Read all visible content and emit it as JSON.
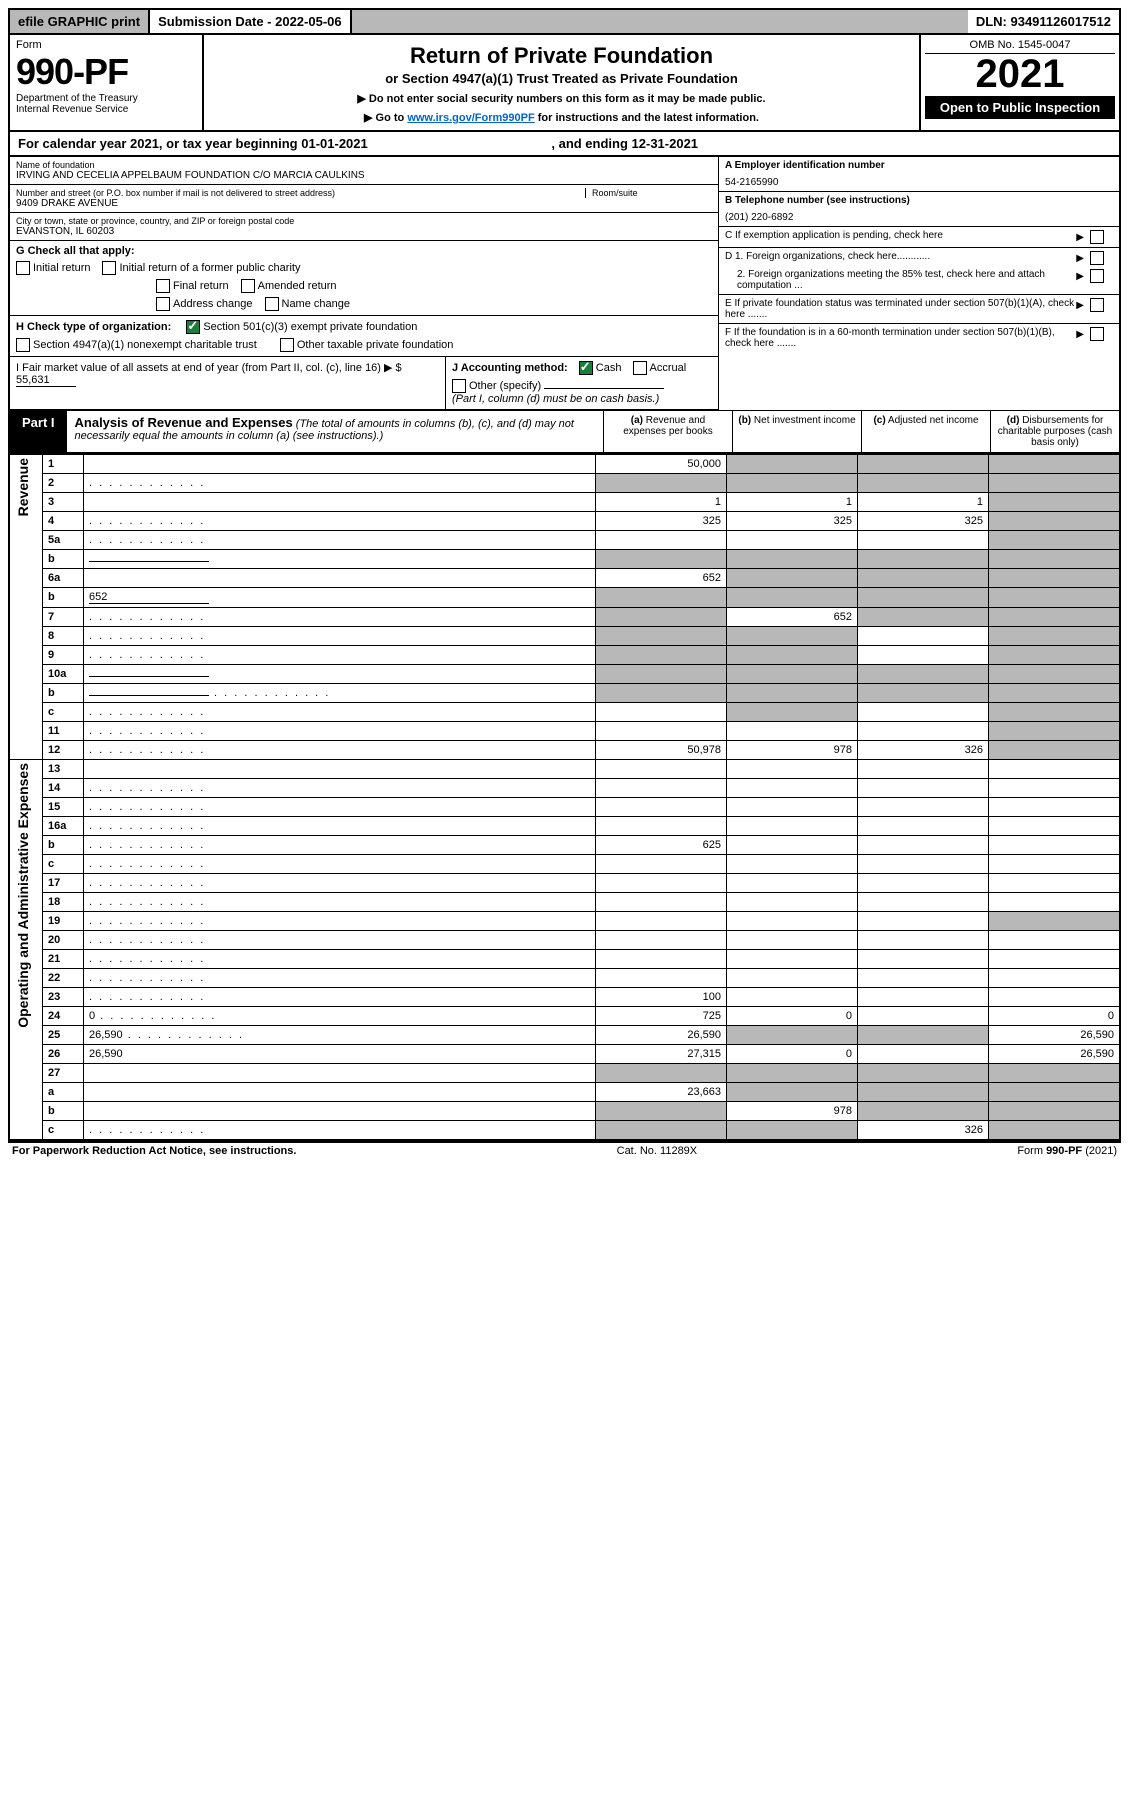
{
  "topbar": {
    "efile": "efile GRAPHIC print",
    "subdate_label": "Submission Date - ",
    "subdate": "2022-05-06",
    "dln_label": "DLN: ",
    "dln": "93491126017512"
  },
  "header": {
    "form_label": "Form",
    "form_no": "990-PF",
    "dept1": "Department of the Treasury",
    "dept2": "Internal Revenue Service",
    "title": "Return of Private Foundation",
    "subtitle": "or Section 4947(a)(1) Trust Treated as Private Foundation",
    "note1": "▶ Do not enter social security numbers on this form as it may be made public.",
    "note2_pre": "▶ Go to ",
    "note2_link": "www.irs.gov/Form990PF",
    "note2_post": " for instructions and the latest information.",
    "omb": "OMB No. 1545-0047",
    "year": "2021",
    "open": "Open to Public Inspection"
  },
  "calyear": {
    "text_pre": "For calendar year 2021, or tax year beginning ",
    "begin": "01-01-2021",
    "text_mid": " , and ending ",
    "end": "12-31-2021"
  },
  "ident": {
    "name_label": "Name of foundation",
    "name": "IRVING AND CECELIA APPELBAUM FOUNDATION C/O MARCIA CAULKINS",
    "addr_label": "Number and street (or P.O. box number if mail is not delivered to street address)",
    "addr": "9409 DRAKE AVENUE",
    "room_label": "Room/suite",
    "city_label": "City or town, state or province, country, and ZIP or foreign postal code",
    "city": "EVANSTON, IL  60203",
    "a_label": "A Employer identification number",
    "a_val": "54-2165990",
    "b_label": "B Telephone number (see instructions)",
    "b_val": "(201) 220-6892",
    "c_label": "C If exemption application is pending, check here",
    "d1": "D 1. Foreign organizations, check here............",
    "d2": "2. Foreign organizations meeting the 85% test, check here and attach computation ...",
    "e": "E  If private foundation status was terminated under section 507(b)(1)(A), check here .......",
    "f": "F  If the foundation is in a 60-month termination under section 507(b)(1)(B), check here .......",
    "g_label": "G Check all that apply:",
    "g_opts": [
      "Initial return",
      "Initial return of a former public charity",
      "Final return",
      "Amended return",
      "Address change",
      "Name change"
    ],
    "h_label": "H Check type of organization:",
    "h_opt1": "Section 501(c)(3) exempt private foundation",
    "h_opt2": "Section 4947(a)(1) nonexempt charitable trust",
    "h_opt3": "Other taxable private foundation",
    "i_label": "I Fair market value of all assets at end of year (from Part II, col. (c), line 16)",
    "i_val": "55,631",
    "j_label": "J Accounting method:",
    "j_cash": "Cash",
    "j_accrual": "Accrual",
    "j_other": "Other (specify)",
    "j_note": "(Part I, column (d) must be on cash basis.)"
  },
  "part1": {
    "label": "Part I",
    "title": "Analysis of Revenue and Expenses",
    "title_sub": " (The total of amounts in columns (b), (c), and (d) may not necessarily equal the amounts in column (a) (see instructions).)",
    "col_a": "(a) Revenue and expenses per books",
    "col_b": "(b) Net investment income",
    "col_c": "(c) Adjusted net income",
    "col_d": "(d) Disbursements for charitable purposes (cash basis only)"
  },
  "vlabels": {
    "revenue": "Revenue",
    "opadmin": "Operating and Administrative Expenses"
  },
  "rows": [
    {
      "n": "1",
      "d": "",
      "a": "50,000",
      "b": "",
      "c": "",
      "shade": [
        "b",
        "c",
        "d"
      ]
    },
    {
      "n": "2",
      "d": "",
      "a": "",
      "b": "",
      "c": "",
      "shade": [
        "a",
        "b",
        "c",
        "d"
      ],
      "dots": true
    },
    {
      "n": "3",
      "d": "",
      "a": "1",
      "b": "1",
      "c": "1",
      "shade": [
        "d"
      ]
    },
    {
      "n": "4",
      "d": "",
      "a": "325",
      "b": "325",
      "c": "325",
      "shade": [
        "d"
      ],
      "dots": true
    },
    {
      "n": "5a",
      "d": "",
      "a": "",
      "b": "",
      "c": "",
      "shade": [
        "d"
      ],
      "dots": true
    },
    {
      "n": "b",
      "d": "",
      "a": "",
      "b": "",
      "c": "",
      "shade": [
        "a",
        "b",
        "c",
        "d"
      ],
      "subline": true
    },
    {
      "n": "6a",
      "d": "",
      "a": "652",
      "b": "",
      "c": "",
      "shade": [
        "b",
        "c",
        "d"
      ]
    },
    {
      "n": "b",
      "d": "",
      "a": "",
      "b": "",
      "c": "",
      "shade": [
        "a",
        "b",
        "c",
        "d"
      ],
      "subline": true,
      "subval": "652"
    },
    {
      "n": "7",
      "d": "",
      "a": "",
      "b": "652",
      "c": "",
      "shade": [
        "a",
        "c",
        "d"
      ],
      "dots": true
    },
    {
      "n": "8",
      "d": "",
      "a": "",
      "b": "",
      "c": "",
      "shade": [
        "a",
        "b",
        "d"
      ],
      "dots": true
    },
    {
      "n": "9",
      "d": "",
      "a": "",
      "b": "",
      "c": "",
      "shade": [
        "a",
        "b",
        "d"
      ],
      "dots": true
    },
    {
      "n": "10a",
      "d": "",
      "a": "",
      "b": "",
      "c": "",
      "shade": [
        "a",
        "b",
        "c",
        "d"
      ],
      "subline": true
    },
    {
      "n": "b",
      "d": "",
      "a": "",
      "b": "",
      "c": "",
      "shade": [
        "a",
        "b",
        "c",
        "d"
      ],
      "subline": true,
      "dots": true
    },
    {
      "n": "c",
      "d": "",
      "a": "",
      "b": "",
      "c": "",
      "shade": [
        "b",
        "d"
      ],
      "dots": true
    },
    {
      "n": "11",
      "d": "",
      "a": "",
      "b": "",
      "c": "",
      "shade": [
        "d"
      ],
      "dots": true
    },
    {
      "n": "12",
      "d": "",
      "a": "50,978",
      "b": "978",
      "c": "326",
      "shade": [
        "d"
      ],
      "dots": true
    },
    {
      "n": "13",
      "d": "",
      "a": "",
      "b": "",
      "c": ""
    },
    {
      "n": "14",
      "d": "",
      "a": "",
      "b": "",
      "c": "",
      "dots": true
    },
    {
      "n": "15",
      "d": "",
      "a": "",
      "b": "",
      "c": "",
      "dots": true
    },
    {
      "n": "16a",
      "d": "",
      "a": "",
      "b": "",
      "c": "",
      "dots": true
    },
    {
      "n": "b",
      "d": "",
      "a": "625",
      "b": "",
      "c": "",
      "dots": true
    },
    {
      "n": "c",
      "d": "",
      "a": "",
      "b": "",
      "c": "",
      "dots": true
    },
    {
      "n": "17",
      "d": "",
      "a": "",
      "b": "",
      "c": "",
      "dots": true
    },
    {
      "n": "18",
      "d": "",
      "a": "",
      "b": "",
      "c": "",
      "dots": true
    },
    {
      "n": "19",
      "d": "",
      "a": "",
      "b": "",
      "c": "",
      "shade": [
        "d"
      ],
      "dots": true
    },
    {
      "n": "20",
      "d": "",
      "a": "",
      "b": "",
      "c": "",
      "dots": true
    },
    {
      "n": "21",
      "d": "",
      "a": "",
      "b": "",
      "c": "",
      "dots": true
    },
    {
      "n": "22",
      "d": "",
      "a": "",
      "b": "",
      "c": "",
      "dots": true
    },
    {
      "n": "23",
      "d": "",
      "a": "100",
      "b": "",
      "c": "",
      "dots": true
    },
    {
      "n": "24",
      "d": "0",
      "a": "725",
      "b": "0",
      "c": "",
      "dots": true
    },
    {
      "n": "25",
      "d": "26,590",
      "a": "26,590",
      "b": "",
      "c": "",
      "shade": [
        "b",
        "c"
      ],
      "dots": true
    },
    {
      "n": "26",
      "d": "26,590",
      "a": "27,315",
      "b": "0",
      "c": ""
    },
    {
      "n": "27",
      "d": "",
      "a": "",
      "b": "",
      "c": "",
      "shade": [
        "a",
        "b",
        "c",
        "d"
      ]
    },
    {
      "n": "a",
      "d": "",
      "a": "23,663",
      "b": "",
      "c": "",
      "shade": [
        "b",
        "c",
        "d"
      ]
    },
    {
      "n": "b",
      "d": "",
      "a": "",
      "b": "978",
      "c": "",
      "shade": [
        "a",
        "c",
        "d"
      ]
    },
    {
      "n": "c",
      "d": "",
      "a": "",
      "b": "",
      "c": "326",
      "shade": [
        "a",
        "b",
        "d"
      ],
      "dots": true
    }
  ],
  "footer": {
    "left": "For Paperwork Reduction Act Notice, see instructions.",
    "mid": "Cat. No. 11289X",
    "right": "Form 990-PF (2021)"
  },
  "colors": {
    "header_gray": "#b8b8b8",
    "black": "#000000",
    "check_green": "#1a7f3c",
    "link_blue": "#0066cc"
  }
}
